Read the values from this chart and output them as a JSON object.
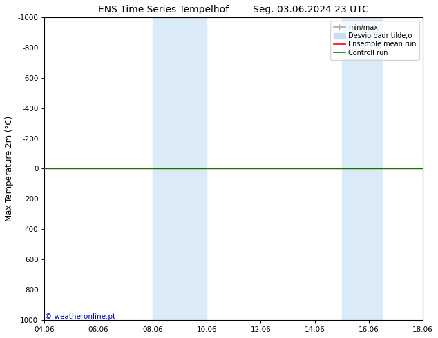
{
  "title_left": "ENS Time Series Tempelhof",
  "title_right": "Seg. 03.06.2024 23 UTC",
  "ylabel": "Max Temperature 2m (°C)",
  "xlabel_ticks": [
    "04.06",
    "06.06",
    "08.06",
    "10.06",
    "12.06",
    "14.06",
    "16.06",
    "18.06"
  ],
  "xtick_positions": [
    0,
    2,
    4,
    6,
    8,
    10,
    12,
    14
  ],
  "yticks": [
    -1000,
    -800,
    -600,
    -400,
    -200,
    0,
    200,
    400,
    600,
    800,
    1000
  ],
  "ylim_bottom": -1000,
  "ylim_top": 1000,
  "xlim": [
    0,
    14
  ],
  "background_color": "#ffffff",
  "plot_bg_color": "#ffffff",
  "shaded_bands": [
    {
      "xstart": 4,
      "xend": 6,
      "color": "#daeaf7"
    },
    {
      "xstart": 11,
      "xend": 12.5,
      "color": "#daeaf7"
    }
  ],
  "green_line_y": 0,
  "red_line_y": 0,
  "legend_items": [
    {
      "label": "min/max",
      "color": "#aaaaaa",
      "lw": 1.2
    },
    {
      "label": "Desvio padr tilde;o",
      "color": "#c8dff0"
    },
    {
      "label": "Ensemble mean run",
      "color": "#ff0000",
      "lw": 1.2
    },
    {
      "label": "Controll run",
      "color": "#008000",
      "lw": 1.2
    }
  ],
  "watermark": "© weatheronline.pt",
  "watermark_color": "#0000cc",
  "title_fontsize": 10,
  "tick_fontsize": 7.5,
  "ylabel_fontsize": 8.5
}
